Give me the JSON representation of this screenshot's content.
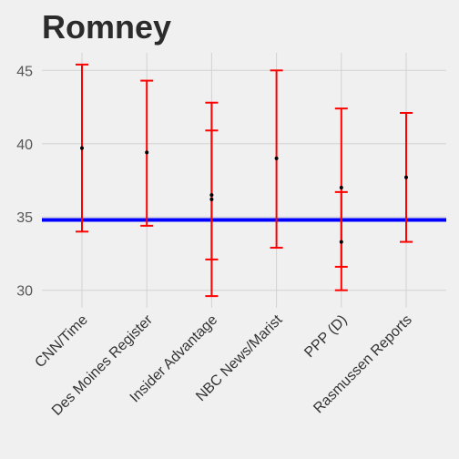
{
  "chart_data": {
    "type": "errorbar",
    "title": "Romney",
    "xlabel": "",
    "ylabel": "",
    "ylim": [
      28.8,
      46.2
    ],
    "yticks": [
      30,
      35,
      40,
      45
    ],
    "ytick_labels": [
      "30",
      "35",
      "40",
      "45"
    ],
    "categories": [
      "CNN/Time",
      "Des Moines Register",
      "Insider Advantage",
      "NBC News/Marist",
      "PPP (D)",
      "Rasmussen Reports"
    ],
    "points": [
      {
        "category": "CNN/Time",
        "value": 39.7,
        "lower": 34.0,
        "upper": 45.4
      },
      {
        "category": "Des Moines Register",
        "value": 39.4,
        "lower": 34.4,
        "upper": 44.3
      },
      {
        "category": "Insider Advantage",
        "value": 36.5,
        "lower": 32.1,
        "upper": 40.9
      },
      {
        "category": "Insider Advantage",
        "value": 36.2,
        "lower": 29.6,
        "upper": 42.8
      },
      {
        "category": "NBC News/Marist",
        "value": 39.0,
        "lower": 32.9,
        "upper": 45.0
      },
      {
        "category": "PPP (D)",
        "value": 37.0,
        "lower": 31.6,
        "upper": 42.4
      },
      {
        "category": "PPP (D)",
        "value": 33.3,
        "lower": 30.0,
        "upper": 36.7
      },
      {
        "category": "Rasmussen Reports",
        "value": 37.7,
        "lower": 33.3,
        "upper": 42.1
      }
    ],
    "reference_line": {
      "value": 34.8,
      "color": "#0000FF"
    },
    "errorbar_color": "#FF0000",
    "point_color": "#000000",
    "grid": true,
    "legend": "none"
  }
}
